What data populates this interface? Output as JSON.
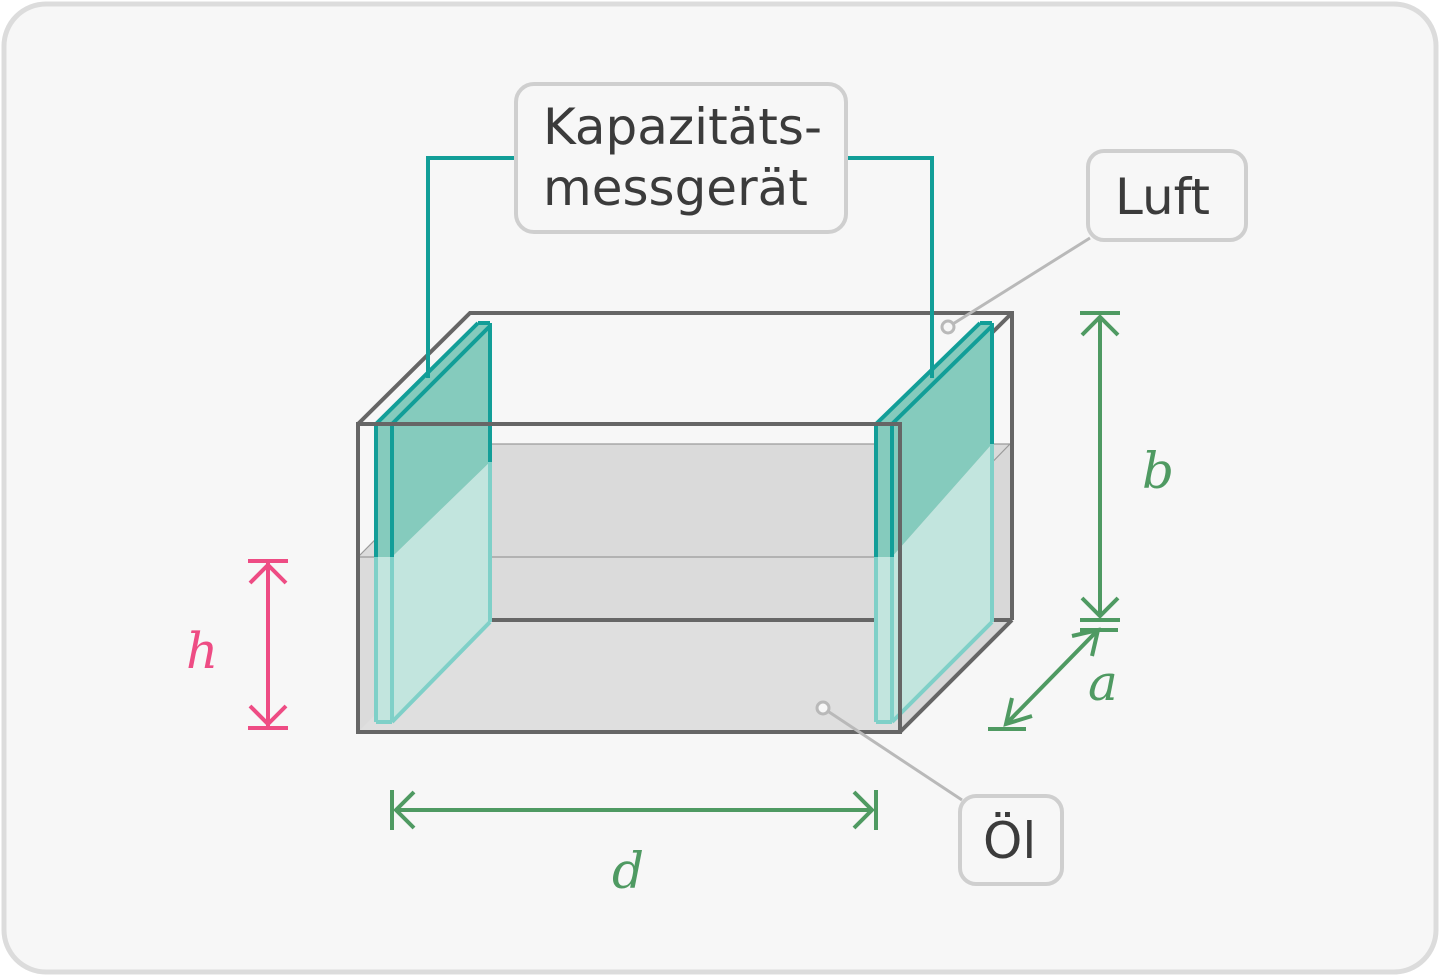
{
  "labels": {
    "device_line1": "Kapazitäts-",
    "device_line2": "messgerät",
    "air": "Luft",
    "oil": "Öl"
  },
  "variables": {
    "h": "h",
    "d": "d",
    "b": "b",
    "a": "a"
  },
  "colors": {
    "background": "#f7f7f7",
    "border": "#dcdcdc",
    "tank_outline": "#666666",
    "oil_fill": "#dadada",
    "plate_dark": "#129e98",
    "plate_fill": "#85cbbd",
    "plate_submerged": "#c2e5de",
    "dimension_green": "#4f9a62",
    "dimension_pink": "#ee4c84",
    "callout_border": "#cfcfcf",
    "leader_gray": "#b9b9b9"
  }
}
